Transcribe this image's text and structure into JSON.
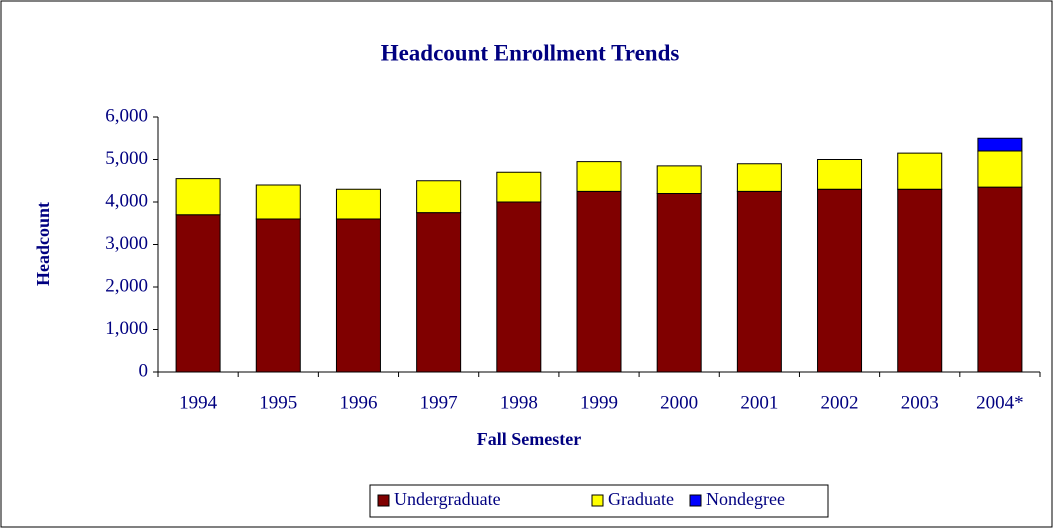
{
  "chart_data": {
    "type": "stacked_bar",
    "title": "Headcount Enrollment Trends",
    "x_label": "Fall Semester",
    "y_label": "Headcount",
    "categories": [
      "1994",
      "1995",
      "1996",
      "1997",
      "1998",
      "1999",
      "2000",
      "2001",
      "2002",
      "2003",
      "2004*"
    ],
    "series": [
      {
        "name": "Undergraduate",
        "color": "#800000",
        "values": [
          3700,
          3600,
          3600,
          3750,
          4000,
          4250,
          4200,
          4250,
          4300,
          4300,
          4350
        ]
      },
      {
        "name": "Graduate",
        "color": "#ffff00",
        "values": [
          850,
          800,
          700,
          750,
          700,
          700,
          650,
          650,
          700,
          850,
          850
        ]
      },
      {
        "name": "Nondegree",
        "color": "#0000ff",
        "values": [
          0,
          0,
          0,
          0,
          0,
          0,
          0,
          0,
          0,
          0,
          300
        ]
      }
    ],
    "ylim": [
      0,
      6000
    ],
    "yticks": [
      0,
      {
        "value": 1000,
        "label": "1,000"
      },
      {
        "value": 2000,
        "label": "2,000"
      },
      {
        "value": 3000,
        "label": "3,000"
      },
      {
        "value": 4000,
        "label": "4,000"
      },
      {
        "value": 5000,
        "label": "5,000"
      },
      {
        "value": 6000,
        "label": "6,000"
      }
    ],
    "legend": "bottom",
    "grid": false
  }
}
